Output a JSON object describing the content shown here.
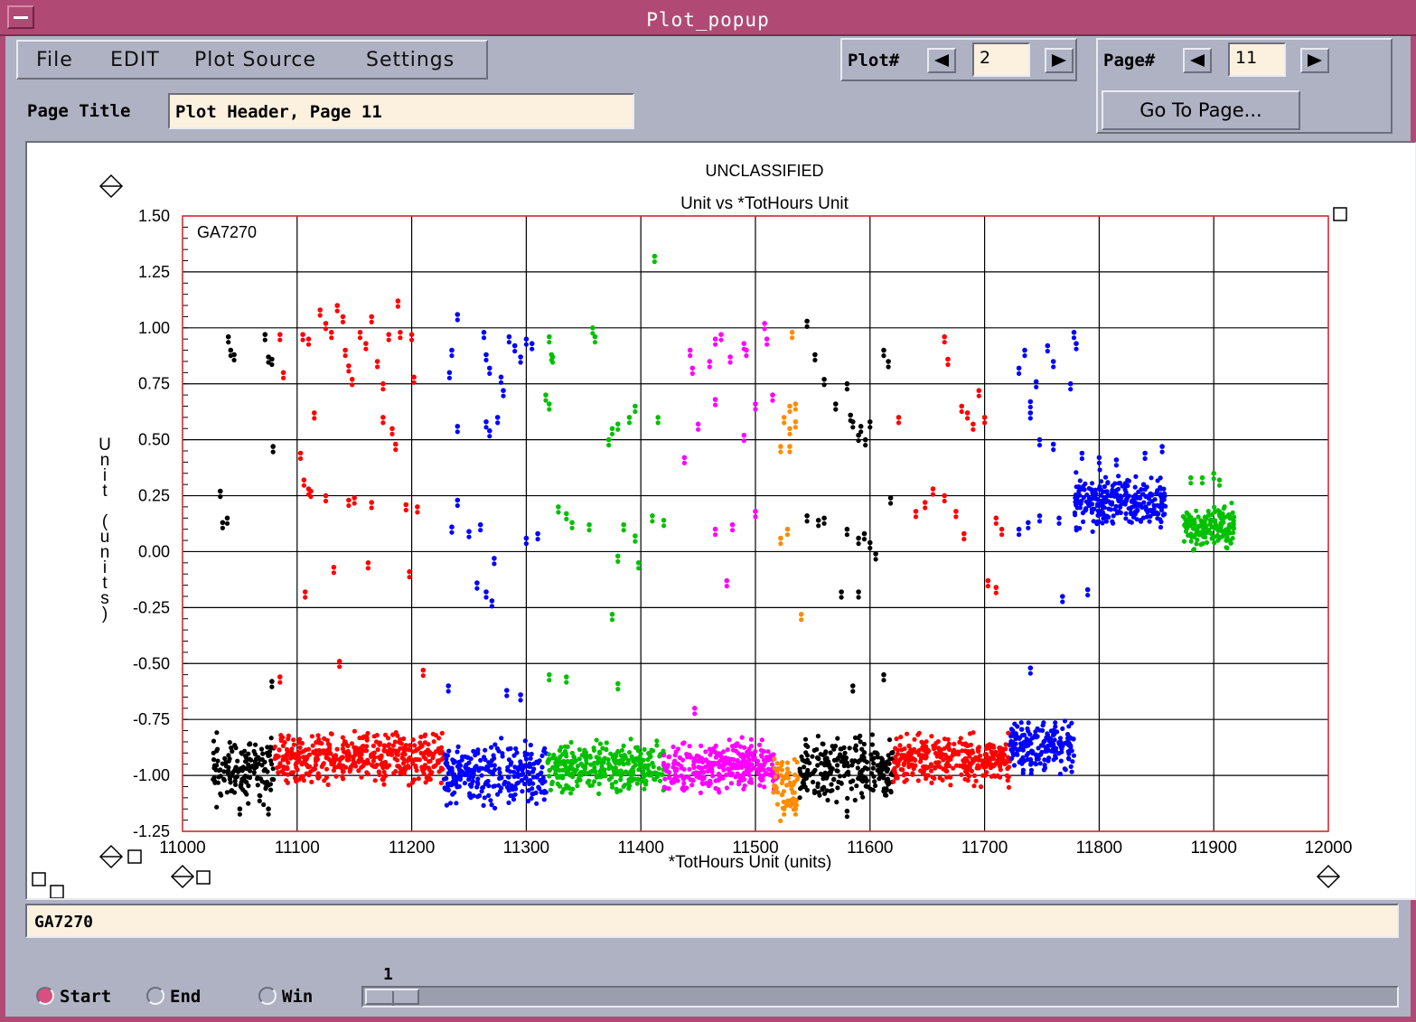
{
  "window": {
    "title": "Plot_popup"
  },
  "menu": {
    "items": [
      "File",
      "EDIT",
      "Plot Source",
      "Settings"
    ]
  },
  "plot_nav": {
    "label": "Plot#",
    "value": "2"
  },
  "page_nav": {
    "label": "Page#",
    "value": "11",
    "goto_label": "Go To Page..."
  },
  "page_title": {
    "label": "Page Title",
    "value": "Plot Header, Page 11"
  },
  "status": {
    "value": "GA7270"
  },
  "controls": {
    "radios": [
      {
        "label": "Start",
        "selected": true
      },
      {
        "label": "End",
        "selected": false
      },
      {
        "label": "Win",
        "selected": false
      }
    ],
    "slider_value": "1"
  },
  "icons": [
    "system-menu-icon",
    "left-arrow-icon",
    "right-arrow-icon",
    "diamond-axis-icon",
    "square-handle-icon"
  ],
  "colors": {
    "title_bar": "#b04a74",
    "panel": "#aeb2c3",
    "field_bg": "#fcf1df",
    "plot_border": "#e03030"
  },
  "chart_data": {
    "type": "scatter",
    "classification": "UNCLASSIFIED",
    "title": "Unit vs *TotHours Unit",
    "xlabel": "*TotHours Unit (units)",
    "ylabel": "Unit (units)",
    "annotation": "GA7270",
    "xlim": [
      11000,
      12000
    ],
    "ylim": [
      -1.25,
      1.5
    ],
    "x_ticks": [
      "11000",
      "11100",
      "11200",
      "11300",
      "11400",
      "11500",
      "11600",
      "11700",
      "11800",
      "11900",
      "12000"
    ],
    "y_ticks": [
      "1.50",
      "1.25",
      "1.00",
      "0.75",
      "0.50",
      "0.25",
      "0.00",
      "-0.25",
      "-0.50",
      "-0.75",
      "-1.00",
      "-1.25"
    ],
    "grid": true,
    "series": [
      {
        "color": "#000000",
        "seed": 11,
        "xrange": [
          11026,
          11080
        ],
        "base": -0.98,
        "spread": 0.06,
        "density": 140,
        "outliers": [
          [
            11040,
            0.96
          ],
          [
            11042,
            0.9
          ],
          [
            11045,
            0.88
          ],
          [
            11033,
            0.27
          ],
          [
            11035,
            0.13
          ],
          [
            11039,
            0.15
          ],
          [
            11072,
            0.97
          ],
          [
            11075,
            0.87
          ],
          [
            11078,
            0.86
          ],
          [
            11079,
            0.47
          ],
          [
            11078,
            -0.58
          ],
          [
            11050,
            -1.15
          ],
          [
            11075,
            -1.15
          ]
        ]
      },
      {
        "color": "#ff0000",
        "seed": 23,
        "xrange": [
          11080,
          11228
        ],
        "base": -0.92,
        "spread": 0.05,
        "density": 420,
        "outliers": [
          [
            11085,
            0.97
          ],
          [
            11088,
            0.8
          ],
          [
            11105,
            0.97
          ],
          [
            11110,
            0.95
          ],
          [
            11120,
            1.08
          ],
          [
            11125,
            1.02
          ],
          [
            11130,
            0.98
          ],
          [
            11135,
            1.1
          ],
          [
            11140,
            1.05
          ],
          [
            11142,
            0.9
          ],
          [
            11145,
            0.83
          ],
          [
            11148,
            0.77
          ],
          [
            11155,
            0.98
          ],
          [
            11160,
            0.93
          ],
          [
            11165,
            1.05
          ],
          [
            11170,
            0.85
          ],
          [
            11175,
            0.75
          ],
          [
            11180,
            0.97
          ],
          [
            11183,
            0.55
          ],
          [
            11186,
            0.48
          ],
          [
            11188,
            1.12
          ],
          [
            11190,
            0.98
          ],
          [
            11200,
            0.97
          ],
          [
            11202,
            0.78
          ],
          [
            11103,
            0.44
          ],
          [
            11106,
            0.32
          ],
          [
            11110,
            0.28
          ],
          [
            11112,
            0.27
          ],
          [
            11125,
            0.25
          ],
          [
            11145,
            0.23
          ],
          [
            11150,
            0.24
          ],
          [
            11165,
            0.22
          ],
          [
            11195,
            0.21
          ],
          [
            11205,
            0.2
          ],
          [
            11107,
            -0.18
          ],
          [
            11132,
            -0.07
          ],
          [
            11162,
            -0.05
          ],
          [
            11198,
            -0.09
          ],
          [
            11210,
            -0.53
          ],
          [
            11137,
            -0.49
          ],
          [
            11085,
            -0.56
          ],
          [
            11115,
            0.62
          ],
          [
            11175,
            0.6
          ]
        ]
      },
      {
        "color": "#0000ff",
        "seed": 37,
        "xrange": [
          11228,
          11318
        ],
        "base": -1.0,
        "spread": 0.06,
        "density": 260,
        "outliers": [
          [
            11240,
            1.06
          ],
          [
            11235,
            0.9
          ],
          [
            11233,
            0.8
          ],
          [
            11263,
            0.98
          ],
          [
            11265,
            0.88
          ],
          [
            11268,
            0.82
          ],
          [
            11278,
            0.78
          ],
          [
            11285,
            0.96
          ],
          [
            11290,
            0.92
          ],
          [
            11295,
            0.87
          ],
          [
            11300,
            0.95
          ],
          [
            11305,
            0.93
          ],
          [
            11240,
            0.56
          ],
          [
            11265,
            0.58
          ],
          [
            11268,
            0.54
          ],
          [
            11275,
            0.6
          ],
          [
            11280,
            0.72
          ],
          [
            11235,
            0.11
          ],
          [
            11240,
            0.23
          ],
          [
            11250,
            0.09
          ],
          [
            11260,
            0.12
          ],
          [
            11272,
            -0.03
          ],
          [
            11257,
            -0.14
          ],
          [
            11265,
            -0.18
          ],
          [
            11270,
            -0.22
          ],
          [
            11283,
            -0.62
          ],
          [
            11295,
            -0.64
          ],
          [
            11232,
            -0.6
          ],
          [
            11300,
            0.06
          ],
          [
            11310,
            0.08
          ]
        ]
      },
      {
        "color": "#00c000",
        "seed": 53,
        "xrange": [
          11318,
          11420
        ],
        "base": -0.96,
        "spread": 0.05,
        "density": 300,
        "outliers": [
          [
            11320,
            0.96
          ],
          [
            11322,
            0.88
          ],
          [
            11323,
            0.87
          ],
          [
            11317,
            0.7
          ],
          [
            11320,
            0.66
          ],
          [
            11358,
            1.0
          ],
          [
            11360,
            0.96
          ],
          [
            11372,
            0.5
          ],
          [
            11375,
            0.55
          ],
          [
            11380,
            0.57
          ],
          [
            11390,
            0.6
          ],
          [
            11395,
            0.65
          ],
          [
            11412,
            1.32
          ],
          [
            11415,
            0.6
          ],
          [
            11328,
            0.2
          ],
          [
            11335,
            0.17
          ],
          [
            11340,
            0.13
          ],
          [
            11355,
            0.12
          ],
          [
            11385,
            0.12
          ],
          [
            11395,
            0.07
          ],
          [
            11410,
            0.16
          ],
          [
            11420,
            0.14
          ],
          [
            11380,
            -0.02
          ],
          [
            11398,
            -0.05
          ],
          [
            11375,
            -0.28
          ],
          [
            11320,
            -0.55
          ],
          [
            11335,
            -0.56
          ],
          [
            11380,
            -0.59
          ]
        ]
      },
      {
        "color": "#ff00ff",
        "seed": 71,
        "xrange": [
          11420,
          11520
        ],
        "base": -0.96,
        "spread": 0.05,
        "density": 300,
        "outliers": [
          [
            11443,
            0.9
          ],
          [
            11445,
            0.82
          ],
          [
            11460,
            0.85
          ],
          [
            11465,
            0.95
          ],
          [
            11470,
            0.97
          ],
          [
            11478,
            0.87
          ],
          [
            11490,
            0.93
          ],
          [
            11492,
            0.9
          ],
          [
            11508,
            1.02
          ],
          [
            11510,
            0.95
          ],
          [
            11515,
            0.7
          ],
          [
            11450,
            0.57
          ],
          [
            11438,
            0.42
          ],
          [
            11465,
            0.68
          ],
          [
            11490,
            0.52
          ],
          [
            11500,
            0.66
          ],
          [
            11465,
            0.1
          ],
          [
            11480,
            0.12
          ],
          [
            11500,
            0.18
          ],
          [
            11475,
            -0.13
          ],
          [
            11447,
            -0.7
          ]
        ]
      },
      {
        "color": "#ff8c00",
        "seed": 89,
        "xrange": [
          11515,
          11538
        ],
        "base": -1.05,
        "spread": 0.07,
        "density": 60,
        "outliers": [
          [
            11525,
            0.6
          ],
          [
            11530,
            0.55
          ],
          [
            11535,
            0.66
          ],
          [
            11530,
            0.65
          ],
          [
            11522,
            0.47
          ],
          [
            11530,
            0.47
          ],
          [
            11535,
            0.58
          ],
          [
            11532,
            0.98
          ],
          [
            11522,
            0.06
          ],
          [
            11528,
            0.1
          ],
          [
            11540,
            -0.28
          ],
          [
            11525,
            -1.15
          ],
          [
            11535,
            -1.15
          ]
        ]
      },
      {
        "color": "#000000",
        "seed": 97,
        "xrange": [
          11538,
          11620
        ],
        "base": -0.97,
        "spread": 0.06,
        "density": 240,
        "outliers": [
          [
            11545,
            1.03
          ],
          [
            11552,
            0.88
          ],
          [
            11560,
            0.77
          ],
          [
            11570,
            0.66
          ],
          [
            11580,
            0.75
          ],
          [
            11583,
            0.61
          ],
          [
            11585,
            0.58
          ],
          [
            11590,
            0.52
          ],
          [
            11592,
            0.56
          ],
          [
            11600,
            0.58
          ],
          [
            11596,
            0.5
          ],
          [
            11612,
            0.9
          ],
          [
            11616,
            0.85
          ],
          [
            11545,
            0.16
          ],
          [
            11555,
            0.14
          ],
          [
            11560,
            0.15
          ],
          [
            11580,
            0.1
          ],
          [
            11590,
            0.06
          ],
          [
            11595,
            0.08
          ],
          [
            11600,
            0.04
          ],
          [
            11605,
            -0.01
          ],
          [
            11618,
            0.24
          ],
          [
            11575,
            -0.18
          ],
          [
            11590,
            -0.18
          ],
          [
            11585,
            -0.6
          ],
          [
            11612,
            -0.55
          ],
          [
            11580,
            -1.16
          ]
        ]
      },
      {
        "color": "#ff0000",
        "seed": 113,
        "xrange": [
          11620,
          11722
        ],
        "base": -0.93,
        "spread": 0.05,
        "density": 300,
        "outliers": [
          [
            11665,
            0.96
          ],
          [
            11668,
            0.86
          ],
          [
            11625,
            0.6
          ],
          [
            11680,
            0.65
          ],
          [
            11685,
            0.62
          ],
          [
            11690,
            0.57
          ],
          [
            11695,
            0.72
          ],
          [
            11700,
            0.6
          ],
          [
            11710,
            0.15
          ],
          [
            11715,
            0.1
          ],
          [
            11703,
            -0.13
          ],
          [
            11710,
            -0.16
          ],
          [
            11640,
            0.18
          ],
          [
            11648,
            0.22
          ],
          [
            11655,
            0.28
          ],
          [
            11665,
            0.25
          ],
          [
            11675,
            0.18
          ],
          [
            11682,
            0.08
          ]
        ]
      },
      {
        "color": "#0000ff",
        "seed": 131,
        "xrange": [
          11722,
          11778
        ],
        "base": -0.87,
        "spread": 0.05,
        "density": 180,
        "outliers": [
          [
            11730,
            0.82
          ],
          [
            11735,
            0.9
          ],
          [
            11745,
            0.76
          ],
          [
            11755,
            0.92
          ],
          [
            11760,
            0.85
          ],
          [
            11778,
            0.98
          ],
          [
            11780,
            0.93
          ],
          [
            11775,
            0.75
          ],
          [
            11740,
            0.62
          ],
          [
            11748,
            0.5
          ],
          [
            11760,
            0.48
          ],
          [
            11740,
            0.67
          ],
          [
            11730,
            0.1
          ],
          [
            11738,
            0.13
          ],
          [
            11748,
            0.16
          ],
          [
            11765,
            0.15
          ],
          [
            11768,
            -0.2
          ],
          [
            11790,
            -0.17
          ],
          [
            11740,
            -0.52
          ]
        ]
      },
      {
        "color": "#0000ff",
        "seed": 149,
        "xrange": [
          11778,
          11858
        ],
        "base": 0.22,
        "spread": 0.05,
        "density": 260,
        "outliers": [
          [
            11785,
            0.44
          ],
          [
            11800,
            0.42
          ],
          [
            11815,
            0.41
          ],
          [
            11840,
            0.44
          ],
          [
            11855,
            0.47
          ]
        ]
      },
      {
        "color": "#00c000",
        "seed": 163,
        "xrange": [
          11873,
          11918
        ],
        "base": 0.11,
        "spread": 0.04,
        "density": 150,
        "outliers": [
          [
            11880,
            0.33
          ],
          [
            11890,
            0.33
          ],
          [
            11900,
            0.35
          ],
          [
            11905,
            0.32
          ]
        ]
      }
    ]
  }
}
